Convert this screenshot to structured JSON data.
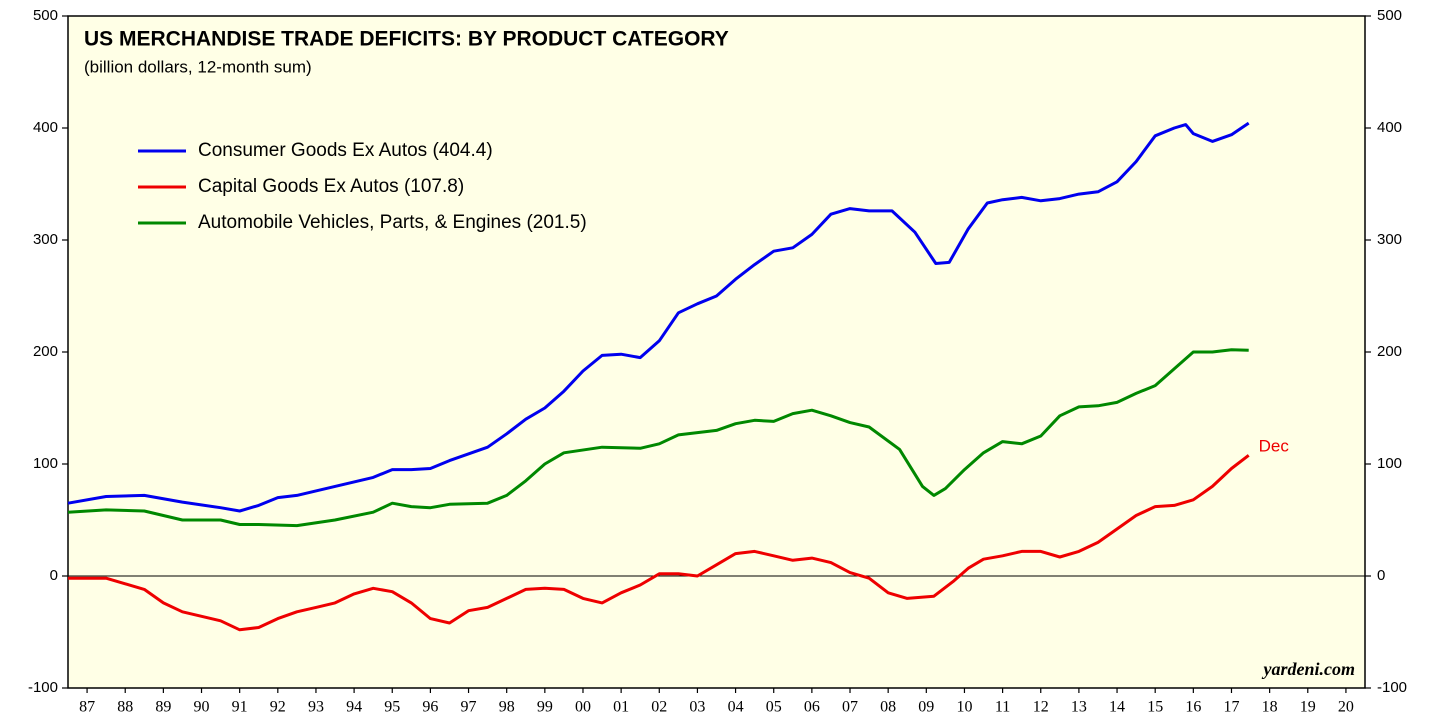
{
  "chart_data": {
    "type": "line",
    "title": "US MERCHANDISE TRADE DEFICITS: BY PRODUCT CATEGORY",
    "subtitle": "(billion dollars, 12-month sum)",
    "annotations": [
      {
        "text": "Dec",
        "color": "#ee0000"
      },
      {
        "text": "yardeni.com"
      }
    ],
    "xlim": [
      1987,
      2021
    ],
    "xticks": [
      {
        "value": 1987.5,
        "label": "87"
      },
      {
        "value": 1988.5,
        "label": "88"
      },
      {
        "value": 1989.5,
        "label": "89"
      },
      {
        "value": 1990.5,
        "label": "90"
      },
      {
        "value": 1991.5,
        "label": "91"
      },
      {
        "value": 1992.5,
        "label": "92"
      },
      {
        "value": 1993.5,
        "label": "93"
      },
      {
        "value": 1994.5,
        "label": "94"
      },
      {
        "value": 1995.5,
        "label": "95"
      },
      {
        "value": 1996.5,
        "label": "96"
      },
      {
        "value": 1997.5,
        "label": "97"
      },
      {
        "value": 1998.5,
        "label": "98"
      },
      {
        "value": 1999.5,
        "label": "99"
      },
      {
        "value": 2000.5,
        "label": "00"
      },
      {
        "value": 2001.5,
        "label": "01"
      },
      {
        "value": 2002.5,
        "label": "02"
      },
      {
        "value": 2003.5,
        "label": "03"
      },
      {
        "value": 2004.5,
        "label": "04"
      },
      {
        "value": 2005.5,
        "label": "05"
      },
      {
        "value": 2006.5,
        "label": "06"
      },
      {
        "value": 2007.5,
        "label": "07"
      },
      {
        "value": 2008.5,
        "label": "08"
      },
      {
        "value": 2009.5,
        "label": "09"
      },
      {
        "value": 2010.5,
        "label": "10"
      },
      {
        "value": 2011.5,
        "label": "11"
      },
      {
        "value": 2012.5,
        "label": "12"
      },
      {
        "value": 2013.5,
        "label": "13"
      },
      {
        "value": 2014.5,
        "label": "14"
      },
      {
        "value": 2015.5,
        "label": "15"
      },
      {
        "value": 2016.5,
        "label": "16"
      },
      {
        "value": 2017.5,
        "label": "17"
      },
      {
        "value": 2018.5,
        "label": "18"
      },
      {
        "value": 2019.5,
        "label": "19"
      },
      {
        "value": 2020.5,
        "label": "20"
      }
    ],
    "ylim": [
      -100,
      500
    ],
    "yticks": [
      -100,
      0,
      100,
      200,
      300,
      400,
      500
    ],
    "zero_line": true,
    "legend": "upper-left",
    "series": [
      {
        "name": "Consumer Goods Ex Autos (404.4)",
        "color": "#0000ee",
        "x": [
          1987,
          1988,
          1989,
          1990,
          1991,
          1991.5,
          1992,
          1992.5,
          1993,
          1994,
          1995,
          1995.5,
          1996,
          1996.5,
          1997,
          1998,
          1998.5,
          1999,
          1999.5,
          2000,
          2000.5,
          2001,
          2001.5,
          2002,
          2002.5,
          2003,
          2003.5,
          2004,
          2004.5,
          2005,
          2005.5,
          2006,
          2006.5,
          2007,
          2007.5,
          2008,
          2008.6,
          2009.2,
          2009.75,
          2010.1,
          2010.6,
          2011.1,
          2011.5,
          2012,
          2012.5,
          2013,
          2013.5,
          2014,
          2014.5,
          2015,
          2015.5,
          2016,
          2016.3,
          2016.5,
          2017,
          2017.5,
          2017.95
        ],
        "values": [
          65,
          71,
          72,
          66,
          61,
          58,
          63,
          70,
          72,
          80,
          88,
          95,
          95,
          96,
          103,
          115,
          127,
          140,
          150,
          165,
          183,
          197,
          198,
          195,
          210,
          235,
          243,
          250,
          265,
          278,
          290,
          293,
          305,
          323,
          328,
          326,
          326,
          307,
          279,
          280,
          310,
          333,
          336,
          338,
          335,
          337,
          341,
          343,
          352,
          370,
          393,
          400,
          403,
          395,
          388,
          394,
          404.4
        ]
      },
      {
        "name": "Capital Goods Ex Autos (107.8)",
        "color": "#ee0000",
        "x": [
          1987,
          1988,
          1988.5,
          1989,
          1989.5,
          1990,
          1990.5,
          1991,
          1991.5,
          1992,
          1992.5,
          1993,
          1993.5,
          1994,
          1994.5,
          1995,
          1995.5,
          1996,
          1996.5,
          1997,
          1997.5,
          1998,
          1998.5,
          1999,
          1999.5,
          2000,
          2000.5,
          2001,
          2001.5,
          2002,
          2002.5,
          2003,
          2003.5,
          2004,
          2004.5,
          2005,
          2005.5,
          2006,
          2006.5,
          2007,
          2007.5,
          2008,
          2008.5,
          2009,
          2009.7,
          2010.2,
          2010.6,
          2011,
          2011.5,
          2012,
          2012.5,
          2013,
          2013.5,
          2014,
          2014.5,
          2015,
          2015.5,
          2016,
          2016.5,
          2017,
          2017.5,
          2017.95
        ],
        "values": [
          -2,
          -2,
          -7,
          -12,
          -24,
          -32,
          -36,
          -40,
          -48,
          -46,
          -38,
          -32,
          -28,
          -24,
          -16,
          -11,
          -14,
          -24,
          -38,
          -42,
          -31,
          -28,
          -20,
          -12,
          -11,
          -12,
          -20,
          -24,
          -15,
          -8,
          2,
          2,
          0,
          10,
          20,
          22,
          18,
          14,
          16,
          12,
          3,
          -2,
          -15,
          -20,
          -18,
          -5,
          7,
          15,
          18,
          22,
          22,
          17,
          22,
          30,
          42,
          54,
          62,
          63,
          68,
          80,
          96,
          107.8
        ]
      },
      {
        "name": "Automobile Vehicles, Parts, & Engines (201.5)",
        "color": "#008800",
        "x": [
          1987,
          1988,
          1989,
          1990,
          1991,
          1991.5,
          1992,
          1993,
          1994,
          1995,
          1995.5,
          1996,
          1996.5,
          1997,
          1998,
          1998.5,
          1999,
          1999.5,
          2000,
          2001,
          2002,
          2002.5,
          2003,
          2004,
          2004.5,
          2005,
          2005.5,
          2006,
          2006.5,
          2007,
          2007.5,
          2008,
          2008.8,
          2009.4,
          2009.7,
          2010,
          2010.5,
          2011,
          2011.5,
          2012,
          2012.5,
          2013,
          2013.5,
          2014,
          2014.5,
          2015,
          2015.5,
          2016,
          2016.5,
          2017,
          2017.5,
          2017.95
        ],
        "values": [
          57,
          59,
          58,
          50,
          50,
          46,
          46,
          45,
          50,
          57,
          65,
          62,
          61,
          64,
          65,
          72,
          85,
          100,
          110,
          115,
          114,
          118,
          126,
          130,
          136,
          139,
          138,
          145,
          148,
          143,
          137,
          133,
          113,
          80,
          72,
          78,
          95,
          110,
          120,
          118,
          125,
          143,
          151,
          152,
          155,
          163,
          170,
          185,
          200,
          200,
          202,
          201.5
        ]
      }
    ]
  }
}
